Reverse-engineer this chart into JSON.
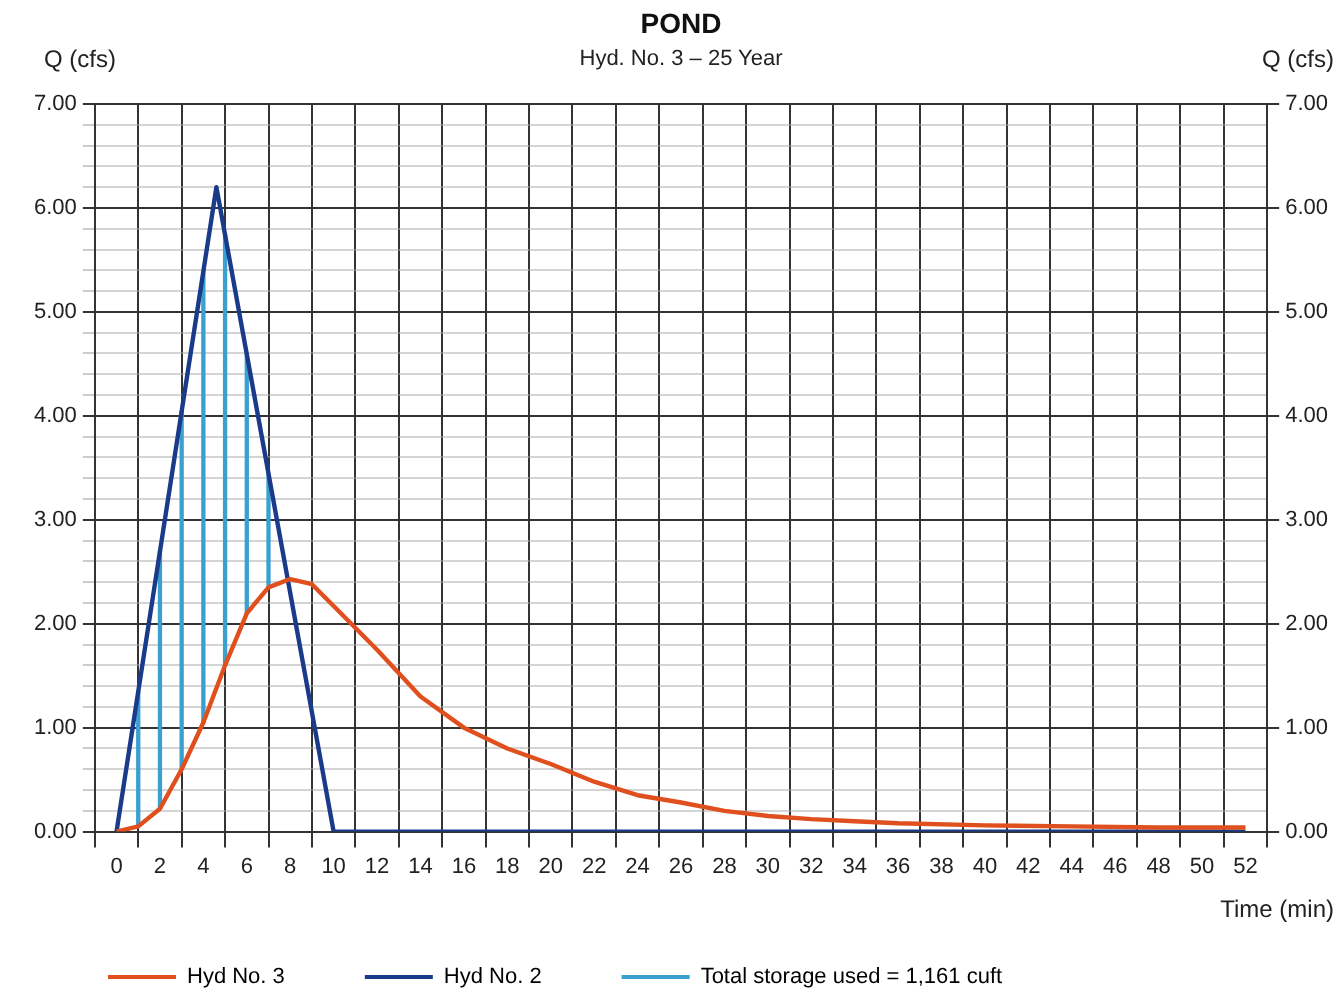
{
  "chart_data": {
    "type": "line",
    "title": "POND",
    "subtitle": "Hyd. No. 3 – 25 Year",
    "xlabel": "Time (min)",
    "ylabel": "Q (cfs)",
    "y2label": "Q (cfs)",
    "series": [
      {
        "name": "Hyd No. 3",
        "color": "#e0501e",
        "x": [
          0,
          1,
          2,
          3,
          4,
          5,
          6,
          7,
          8,
          9,
          10,
          12,
          14,
          16,
          18,
          20,
          22,
          24,
          26,
          28,
          30,
          32,
          34,
          36,
          40,
          44,
          48,
          52
        ],
        "values": [
          0,
          0.05,
          0.22,
          0.6,
          1.05,
          1.6,
          2.1,
          2.35,
          2.43,
          2.38,
          2.17,
          1.75,
          1.3,
          1.0,
          0.8,
          0.65,
          0.48,
          0.35,
          0.28,
          0.2,
          0.15,
          0.12,
          0.1,
          0.08,
          0.06,
          0.05,
          0.04,
          0.04
        ]
      },
      {
        "name": "Hyd No. 2",
        "color": "#1a3a8a",
        "x": [
          0,
          4.6,
          10,
          52
        ],
        "values": [
          0,
          6.2,
          0,
          0
        ]
      },
      {
        "name": "Total storage used = 1,161 cuft",
        "type": "bar",
        "color": "#3aa0d0",
        "x": [
          1,
          2,
          3,
          4,
          5,
          6,
          7
        ],
        "base": [
          0.05,
          0.22,
          0.6,
          1.05,
          1.6,
          2.1,
          2.35
        ],
        "values": [
          1.3,
          2.48,
          3.44,
          4.34,
          4.14,
          2.49,
          1.09
        ]
      }
    ],
    "xlim": [
      0,
      52
    ],
    "xticks": [
      0,
      2,
      4,
      6,
      8,
      10,
      12,
      14,
      16,
      18,
      20,
      22,
      24,
      26,
      28,
      30,
      32,
      34,
      36,
      38,
      40,
      42,
      44,
      46,
      48,
      50,
      52
    ],
    "ylim": [
      0,
      7
    ],
    "yticks": [
      {
        "value": 0,
        "label": "0.00"
      },
      {
        "value": 0.2,
        "label": null
      },
      {
        "value": 0.4,
        "label": null
      },
      {
        "value": 0.6,
        "label": null
      },
      {
        "value": 0.8,
        "label": null
      },
      {
        "value": 1,
        "label": "1.00"
      },
      {
        "value": 1.2,
        "label": null
      },
      {
        "value": 1.4,
        "label": null
      },
      {
        "value": 1.6,
        "label": null
      },
      {
        "value": 1.8,
        "label": null
      },
      {
        "value": 2,
        "label": "2.00"
      },
      {
        "value": 2.2,
        "label": null
      },
      {
        "value": 2.4,
        "label": null
      },
      {
        "value": 2.6,
        "label": null
      },
      {
        "value": 2.8,
        "label": null
      },
      {
        "value": 3,
        "label": "3.00"
      },
      {
        "value": 3.2,
        "label": null
      },
      {
        "value": 3.4,
        "label": null
      },
      {
        "value": 3.6,
        "label": null
      },
      {
        "value": 3.8,
        "label": null
      },
      {
        "value": 4,
        "label": "4.00"
      },
      {
        "value": 4.2,
        "label": null
      },
      {
        "value": 4.4,
        "label": null
      },
      {
        "value": 4.6,
        "label": null
      },
      {
        "value": 4.8,
        "label": null
      },
      {
        "value": 5,
        "label": "5.00"
      },
      {
        "value": 5.2,
        "label": null
      },
      {
        "value": 5.4,
        "label": null
      },
      {
        "value": 5.6,
        "label": null
      },
      {
        "value": 5.8,
        "label": null
      },
      {
        "value": 6,
        "label": "6.00"
      },
      {
        "value": 6.2,
        "label": null
      },
      {
        "value": 6.4,
        "label": null
      },
      {
        "value": 6.6,
        "label": null
      },
      {
        "value": 6.8,
        "label": null
      },
      {
        "value": 7,
        "label": "7.00"
      }
    ],
    "y2lim": [
      0,
      7
    ],
    "y2ticks": [
      {
        "value": 0,
        "label": "0.00"
      },
      {
        "value": 1,
        "label": "1.00"
      },
      {
        "value": 2,
        "label": "2.00"
      },
      {
        "value": 3,
        "label": "3.00"
      },
      {
        "value": 4,
        "label": "4.00"
      },
      {
        "value": 5,
        "label": "5.00"
      },
      {
        "value": 6,
        "label": "6.00"
      },
      {
        "value": 7,
        "label": "7.00"
      }
    ],
    "grid": true,
    "legend": "bottom",
    "marker": "none",
    "line_style": "solid"
  }
}
